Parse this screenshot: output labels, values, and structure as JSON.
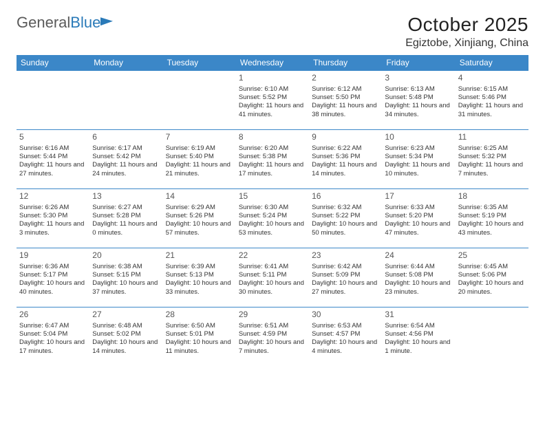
{
  "logo": {
    "part1": "General",
    "part2": "Blue"
  },
  "title": "October 2025",
  "location": "Egiztobe, Xinjiang, China",
  "colors": {
    "header_bg": "#3b87c8",
    "header_text": "#ffffff",
    "border": "#3b87c8",
    "logo_gray": "#5a5a5a",
    "logo_blue": "#2a7ab8"
  },
  "day_headers": [
    "Sunday",
    "Monday",
    "Tuesday",
    "Wednesday",
    "Thursday",
    "Friday",
    "Saturday"
  ],
  "weeks": [
    [
      null,
      null,
      null,
      {
        "n": "1",
        "sr": "6:10 AM",
        "ss": "5:52 PM",
        "dl": "11 hours and 41 minutes."
      },
      {
        "n": "2",
        "sr": "6:12 AM",
        "ss": "5:50 PM",
        "dl": "11 hours and 38 minutes."
      },
      {
        "n": "3",
        "sr": "6:13 AM",
        "ss": "5:48 PM",
        "dl": "11 hours and 34 minutes."
      },
      {
        "n": "4",
        "sr": "6:15 AM",
        "ss": "5:46 PM",
        "dl": "11 hours and 31 minutes."
      }
    ],
    [
      {
        "n": "5",
        "sr": "6:16 AM",
        "ss": "5:44 PM",
        "dl": "11 hours and 27 minutes."
      },
      {
        "n": "6",
        "sr": "6:17 AM",
        "ss": "5:42 PM",
        "dl": "11 hours and 24 minutes."
      },
      {
        "n": "7",
        "sr": "6:19 AM",
        "ss": "5:40 PM",
        "dl": "11 hours and 21 minutes."
      },
      {
        "n": "8",
        "sr": "6:20 AM",
        "ss": "5:38 PM",
        "dl": "11 hours and 17 minutes."
      },
      {
        "n": "9",
        "sr": "6:22 AM",
        "ss": "5:36 PM",
        "dl": "11 hours and 14 minutes."
      },
      {
        "n": "10",
        "sr": "6:23 AM",
        "ss": "5:34 PM",
        "dl": "11 hours and 10 minutes."
      },
      {
        "n": "11",
        "sr": "6:25 AM",
        "ss": "5:32 PM",
        "dl": "11 hours and 7 minutes."
      }
    ],
    [
      {
        "n": "12",
        "sr": "6:26 AM",
        "ss": "5:30 PM",
        "dl": "11 hours and 3 minutes."
      },
      {
        "n": "13",
        "sr": "6:27 AM",
        "ss": "5:28 PM",
        "dl": "11 hours and 0 minutes."
      },
      {
        "n": "14",
        "sr": "6:29 AM",
        "ss": "5:26 PM",
        "dl": "10 hours and 57 minutes."
      },
      {
        "n": "15",
        "sr": "6:30 AM",
        "ss": "5:24 PM",
        "dl": "10 hours and 53 minutes."
      },
      {
        "n": "16",
        "sr": "6:32 AM",
        "ss": "5:22 PM",
        "dl": "10 hours and 50 minutes."
      },
      {
        "n": "17",
        "sr": "6:33 AM",
        "ss": "5:20 PM",
        "dl": "10 hours and 47 minutes."
      },
      {
        "n": "18",
        "sr": "6:35 AM",
        "ss": "5:19 PM",
        "dl": "10 hours and 43 minutes."
      }
    ],
    [
      {
        "n": "19",
        "sr": "6:36 AM",
        "ss": "5:17 PM",
        "dl": "10 hours and 40 minutes."
      },
      {
        "n": "20",
        "sr": "6:38 AM",
        "ss": "5:15 PM",
        "dl": "10 hours and 37 minutes."
      },
      {
        "n": "21",
        "sr": "6:39 AM",
        "ss": "5:13 PM",
        "dl": "10 hours and 33 minutes."
      },
      {
        "n": "22",
        "sr": "6:41 AM",
        "ss": "5:11 PM",
        "dl": "10 hours and 30 minutes."
      },
      {
        "n": "23",
        "sr": "6:42 AM",
        "ss": "5:09 PM",
        "dl": "10 hours and 27 minutes."
      },
      {
        "n": "24",
        "sr": "6:44 AM",
        "ss": "5:08 PM",
        "dl": "10 hours and 23 minutes."
      },
      {
        "n": "25",
        "sr": "6:45 AM",
        "ss": "5:06 PM",
        "dl": "10 hours and 20 minutes."
      }
    ],
    [
      {
        "n": "26",
        "sr": "6:47 AM",
        "ss": "5:04 PM",
        "dl": "10 hours and 17 minutes."
      },
      {
        "n": "27",
        "sr": "6:48 AM",
        "ss": "5:02 PM",
        "dl": "10 hours and 14 minutes."
      },
      {
        "n": "28",
        "sr": "6:50 AM",
        "ss": "5:01 PM",
        "dl": "10 hours and 11 minutes."
      },
      {
        "n": "29",
        "sr": "6:51 AM",
        "ss": "4:59 PM",
        "dl": "10 hours and 7 minutes."
      },
      {
        "n": "30",
        "sr": "6:53 AM",
        "ss": "4:57 PM",
        "dl": "10 hours and 4 minutes."
      },
      {
        "n": "31",
        "sr": "6:54 AM",
        "ss": "4:56 PM",
        "dl": "10 hours and 1 minute."
      },
      null
    ]
  ],
  "labels": {
    "sunrise": "Sunrise:",
    "sunset": "Sunset:",
    "daylight": "Daylight:"
  },
  "fonts": {
    "title_size": 28,
    "location_size": 16,
    "header_size": 12,
    "daynum_size": 12,
    "info_size": 9.5
  }
}
